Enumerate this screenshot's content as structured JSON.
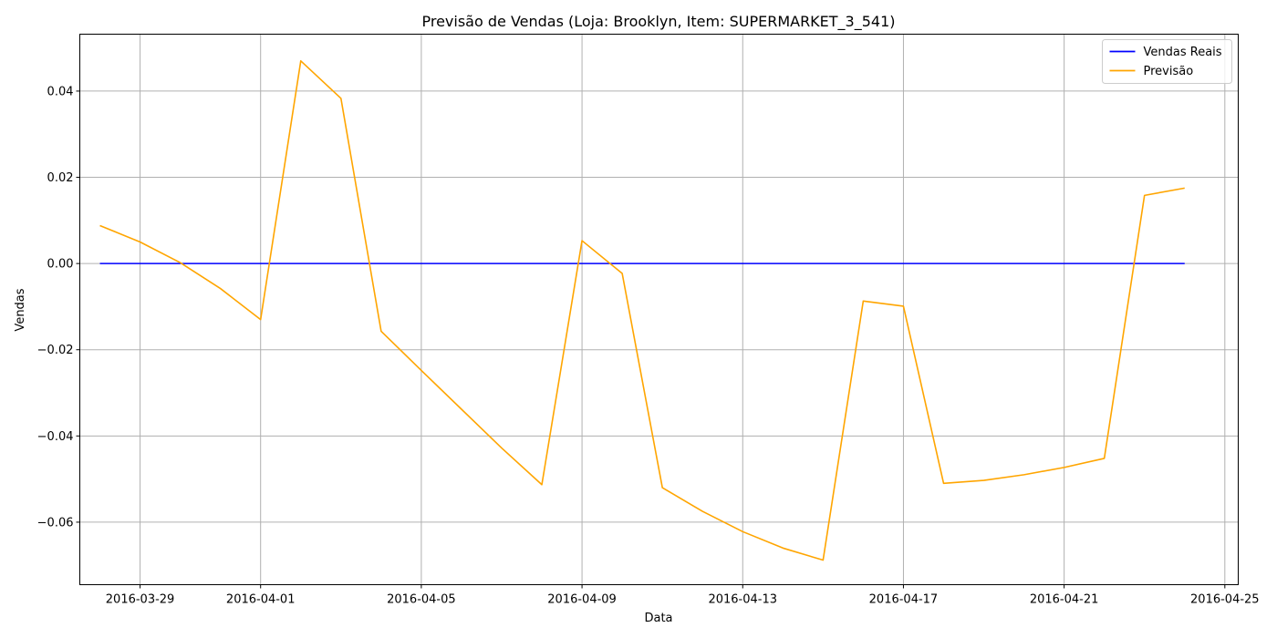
{
  "chart_data": {
    "type": "line",
    "title": "Previsão de Vendas (Loja: Brooklyn, Item: SUPERMARKET_3_541)",
    "xlabel": "Data",
    "ylabel": "Vendas",
    "xlim": [
      "2016-03-27T12:00",
      "2016-04-25T08:00"
    ],
    "ylim": [
      -0.0745,
      0.0532
    ],
    "grid": true,
    "legend_position": "top-right",
    "x_ticks": [
      "2016-03-29",
      "2016-04-01",
      "2016-04-05",
      "2016-04-09",
      "2016-04-13",
      "2016-04-17",
      "2016-04-21",
      "2016-04-25"
    ],
    "y_ticks": [
      -0.06,
      -0.04,
      -0.02,
      0.0,
      0.02,
      0.04
    ],
    "y_tick_labels": [
      "−0.06",
      "−0.04",
      "−0.02",
      "0.00",
      "0.02",
      "0.04"
    ],
    "x": [
      "2016-03-28",
      "2016-03-29",
      "2016-03-30",
      "2016-03-31",
      "2016-04-01",
      "2016-04-02",
      "2016-04-03",
      "2016-04-04",
      "2016-04-05",
      "2016-04-06",
      "2016-04-07",
      "2016-04-08",
      "2016-04-09",
      "2016-04-10",
      "2016-04-11",
      "2016-04-12",
      "2016-04-13",
      "2016-04-14",
      "2016-04-15",
      "2016-04-16",
      "2016-04-17",
      "2016-04-18",
      "2016-04-19",
      "2016-04-20",
      "2016-04-21",
      "2016-04-22",
      "2016-04-23",
      "2016-04-24"
    ],
    "series": [
      {
        "name": "Vendas Reais",
        "color": "#0000ff",
        "values": [
          0,
          0,
          0,
          0,
          0,
          0,
          0,
          0,
          0,
          0,
          0,
          0,
          0,
          0,
          0,
          0,
          0,
          0,
          0,
          0,
          0,
          0,
          0,
          0,
          0,
          0,
          0,
          0
        ]
      },
      {
        "name": "Previsão",
        "color": "#ffa500",
        "values": [
          0.0088,
          0.005,
          0.0002,
          -0.0058,
          -0.013,
          0.047,
          0.0383,
          -0.0157,
          -0.0248,
          -0.0338,
          -0.0428,
          -0.0513,
          0.0053,
          -0.0023,
          -0.052,
          -0.0575,
          -0.0622,
          -0.066,
          -0.0688,
          -0.0087,
          -0.0099,
          -0.051,
          -0.0503,
          -0.049,
          -0.0473,
          -0.0452,
          0.0158,
          0.0175
        ]
      }
    ]
  }
}
